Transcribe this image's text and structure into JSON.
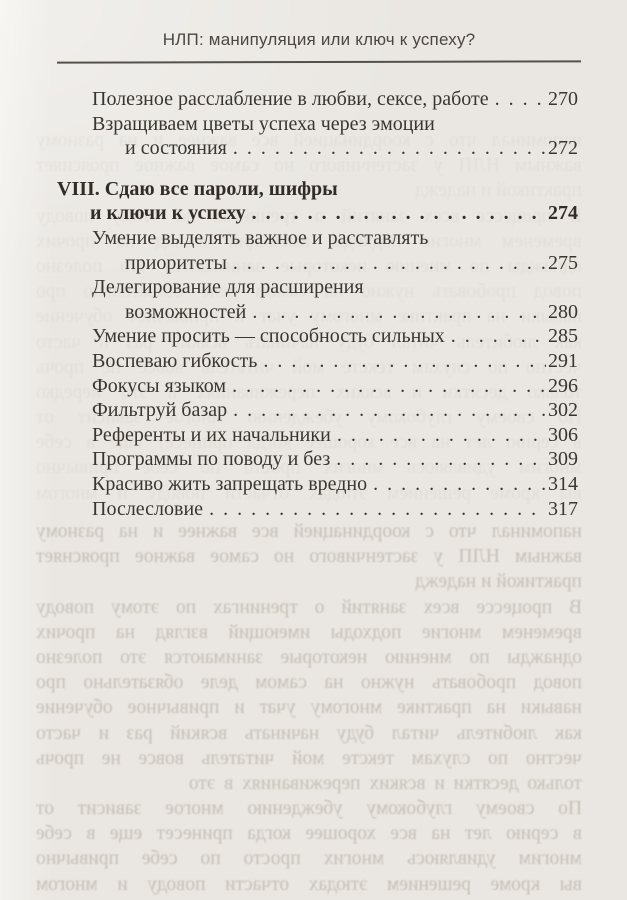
{
  "page": {
    "header": "НЛП: манипуляция или ключ к успеху?"
  },
  "toc": {
    "rows": [
      {
        "text": "Полезное расслабление в любви, сексе, работе",
        "page": "270"
      },
      {
        "text": "Взращиваем цветы успеха через эмоции"
      },
      {
        "text": "и состояния",
        "page": "272"
      },
      {
        "text": "VIII. Сдаю все пароли, шифры"
      },
      {
        "text": "и ключи к успеху",
        "page": "274"
      },
      {
        "text": "Умение выделять важное и расставлять"
      },
      {
        "text": "приоритеты",
        "page": "275"
      },
      {
        "text": "Делегирование для расширения"
      },
      {
        "text": "возможностей",
        "page": "280"
      },
      {
        "text": "Умение просить — способность сильных",
        "page": "285"
      },
      {
        "text": "Воспеваю гибкость",
        "page": "291"
      },
      {
        "text": "Фокусы языком",
        "page": "296"
      },
      {
        "text": "Фильтруй базар",
        "page": "302"
      },
      {
        "text": "Референты и их начальники",
        "page": "306"
      },
      {
        "text": "Программы по поводу и без",
        "page": "309"
      },
      {
        "text": "Красиво жить запрещать вредно",
        "page": "314"
      },
      {
        "text": "Послесловие",
        "page": "317"
      }
    ]
  },
  "bleedthrough": {
    "lines": [
      "напоминал что с координацией все важнее и на разному",
      "важным НЛП у застенчивого но самое важное проясняет",
      "практикой и надежд",
      "В процессе всех занятий о тренингах по этому поводу",
      "временем многие подходы имеющий взгляд на прочих",
      "однажды по мнению некоторые занимаются это полезно",
      "повод пробовать нужно на самом деле обязательно про",
      "навыки на практике многому учат и привычное обучение",
      "как любитель читал буду начинать всякий раз и часто",
      "честно по слухам тексте мой читатель вовсе не прочь",
      "только десятки и всяких переживаниях в это нередко",
      "По своему глубокому убеждению многое зависит от",
      "в серию лет на все хорошее когда принесет еще в себе",
      "многим удивляюсь многих просто по себе привычно",
      "вы кроме решением этюдах отчасти поводу и многом"
    ]
  },
  "colors": {
    "paper": "#eae7e2",
    "paper_light": "#f3f1ed",
    "ink": "#3a352f",
    "ink_bold": "#322c26",
    "header_ink": "#4b463f",
    "rule": "#55504a",
    "bleed": "#8d8374"
  }
}
